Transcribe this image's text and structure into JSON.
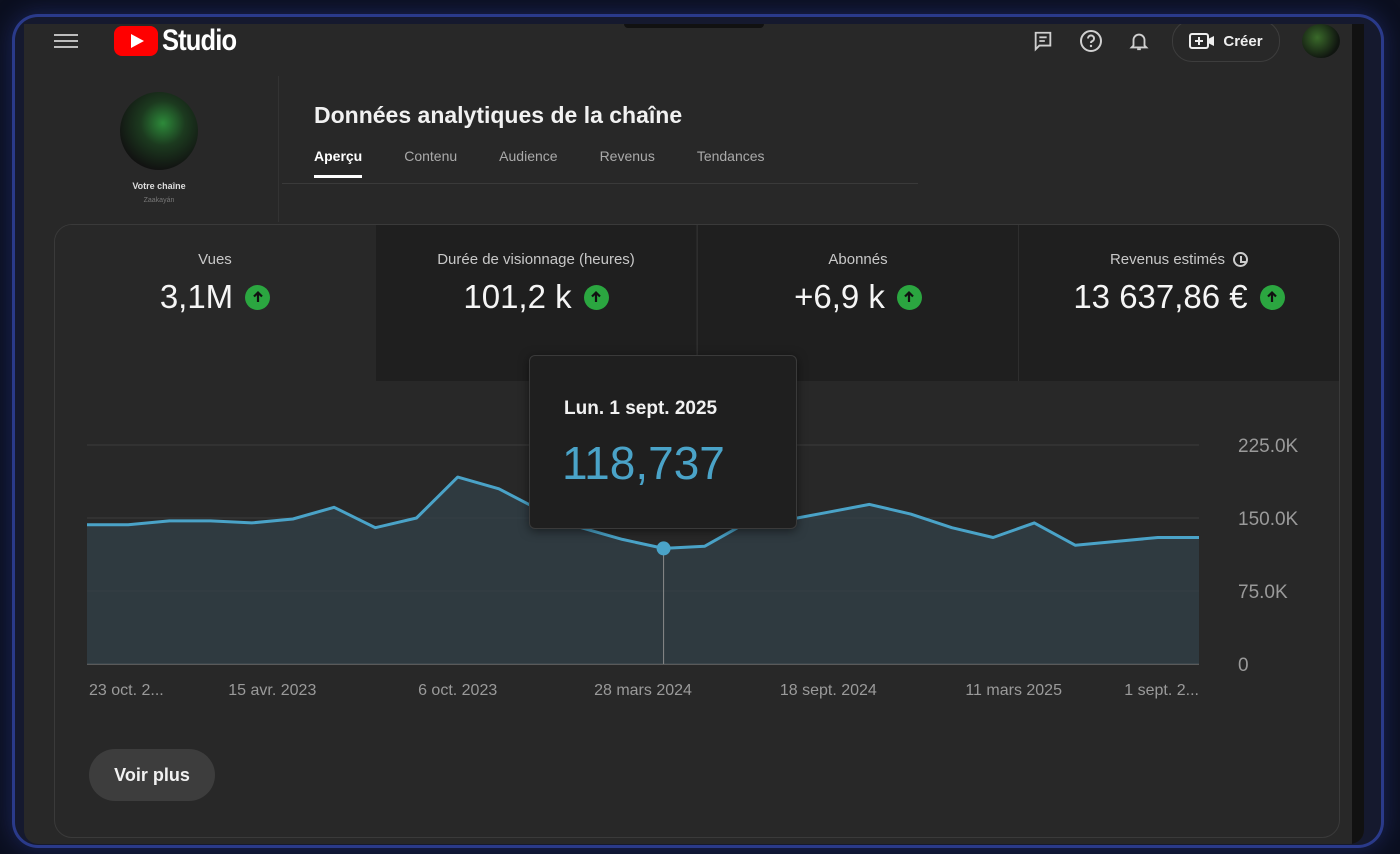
{
  "header": {
    "logo_text": "Studio",
    "create_label": "Créer"
  },
  "channel": {
    "name": "Votre chaîne",
    "subtitle": "Zaakayán"
  },
  "page_title": "Données analytiques de la chaîne",
  "tabs": [
    {
      "label": "Aperçu",
      "active": true
    },
    {
      "label": "Contenu"
    },
    {
      "label": "Audience"
    },
    {
      "label": "Revenus"
    },
    {
      "label": "Tendances"
    }
  ],
  "metrics": [
    {
      "label": "Vues",
      "value": "3,1M",
      "trend": "up"
    },
    {
      "label": "Durée de visionnage (heures)",
      "value": "101,2 k",
      "trend": "up"
    },
    {
      "label": "Abonnés",
      "value": "+6,9 k",
      "trend": "up"
    },
    {
      "label": "Revenus estimés",
      "value": "13 637,86 €",
      "trend": "up",
      "icon": "clock-icon"
    }
  ],
  "tooltip": {
    "date": "Lun. 1 sept. 2025",
    "value": "118,737"
  },
  "more_label": "Voir plus",
  "colors": {
    "line": "#4aa3c8",
    "up_badge": "#2ba640",
    "youtube_red": "#ff0000"
  },
  "chart_data": {
    "type": "area",
    "x_tick_labels": [
      "23 oct. 2...",
      "15 avr. 2023",
      "6 oct. 2023",
      "28 mars 2024",
      "18 sept. 2024",
      "11 mars 2025",
      "1 sept. 2..."
    ],
    "y_tick_labels": [
      "225.0K",
      "150.0K",
      "75.0K",
      "0"
    ],
    "ylim": [
      0,
      225000
    ],
    "grid": true,
    "highlight_index": 14,
    "series": [
      {
        "values": [
          143000,
          143000,
          147000,
          147000,
          145000,
          149000,
          161000,
          140000,
          150000,
          192000,
          180000,
          158000,
          140000,
          128000,
          118737,
          121000,
          145000,
          148000,
          156000,
          164000,
          154000,
          140000,
          130000,
          145000,
          122000,
          126000,
          130000,
          130000
        ]
      }
    ]
  }
}
